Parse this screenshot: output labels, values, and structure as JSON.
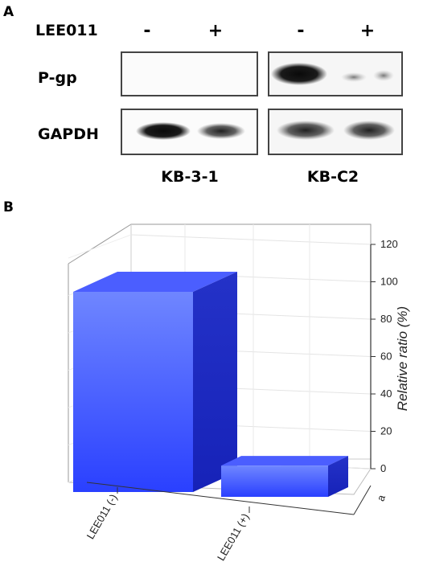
{
  "panel_a": {
    "label": "A",
    "treatment_label": "LEE011",
    "signs": [
      "-",
      "+",
      "-",
      "+"
    ],
    "rows": [
      "P-gp",
      "GAPDH"
    ],
    "cell_lines": [
      "KB-3-1",
      "KB-C2"
    ]
  },
  "panel_b": {
    "label": "B"
  },
  "chart_data": {
    "type": "bar",
    "style": "3d",
    "categories": [
      "LEE011 (-)",
      "LEE011 (+)"
    ],
    "depth_category": "a",
    "values": [
      100,
      26
    ],
    "ylabel": "Relative ratio (%)",
    "ylim": [
      0,
      120
    ],
    "yticks": [
      0,
      20,
      40,
      60,
      80,
      100,
      120
    ],
    "grid": true,
    "bar_color": "#3a55ff"
  }
}
